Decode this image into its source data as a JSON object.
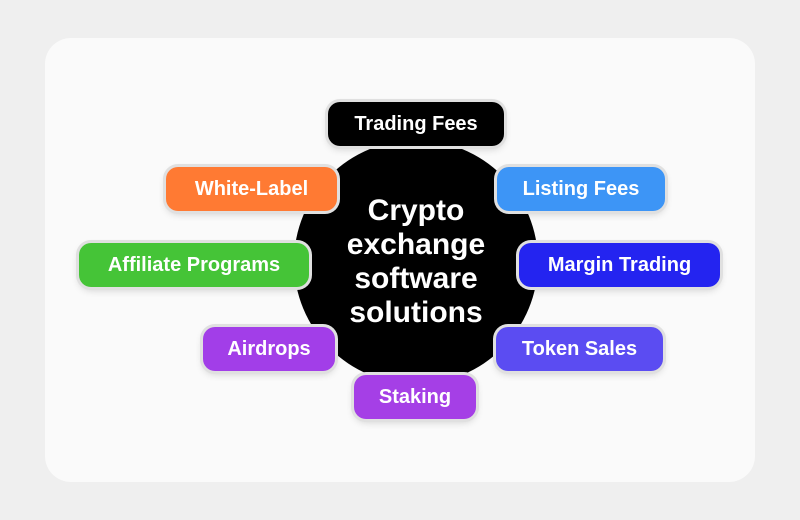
{
  "center": {
    "lines": [
      "Crypto",
      "exchange",
      "software",
      "solutions"
    ],
    "color": "#000000"
  },
  "items": [
    {
      "label": "Trading Fees",
      "color": "#000000"
    },
    {
      "label": "White-Label",
      "color": "#ff7a33"
    },
    {
      "label": "Listing Fees",
      "color": "#3d95f6"
    },
    {
      "label": "Affiliate Programs",
      "color": "#45c437"
    },
    {
      "label": "Margin Trading",
      "color": "#2424f0"
    },
    {
      "label": "Airdrops",
      "color": "#a23ee8"
    },
    {
      "label": "Token Sales",
      "color": "#5b4cf2"
    },
    {
      "label": "Staking",
      "color": "#a53fe6"
    }
  ]
}
